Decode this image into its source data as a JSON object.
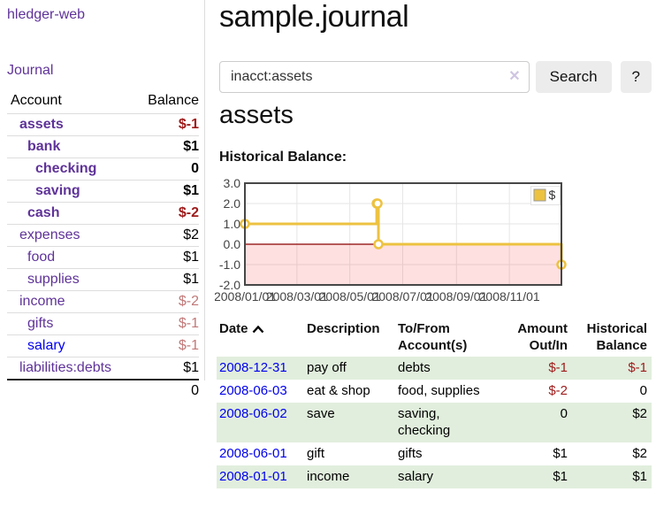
{
  "colors": {
    "purple_link": "#5f3399",
    "blue_link": "#0000ee",
    "negative_bold_red": "#9e1b1b",
    "negative_faded_red": "#c17878",
    "row_stripe_green": "#e1eedd",
    "chart_series_yellow": "#edc240",
    "chart_negative_fill": "#ff0000",
    "chart_zero_line": "#8b0000",
    "chart_grid": "#e6e6e6",
    "chart_border": "#474747",
    "button_bg": "#ececec",
    "input_border": "#cccccc",
    "clear_icon_lavender": "#cfc5e2",
    "divider": "#dddddd",
    "axis_text": "#444444"
  },
  "sidebar": {
    "app_title": "hledger-web",
    "nav": {
      "journal": "Journal"
    },
    "balance_table": {
      "headers": {
        "account": "Account",
        "balance": "Balance"
      },
      "rows": [
        {
          "account": "assets",
          "balance": "$-1",
          "depth": 0,
          "bold": true,
          "link_color": "purple_link",
          "balance_color": "negative_bold_red"
        },
        {
          "account": "bank",
          "balance": "$1",
          "depth": 1,
          "bold": true,
          "link_color": "purple_link",
          "balance_color": ""
        },
        {
          "account": "checking",
          "balance": "0",
          "depth": 2,
          "bold": true,
          "link_color": "purple_link",
          "balance_color": ""
        },
        {
          "account": "saving",
          "balance": "$1",
          "depth": 2,
          "bold": true,
          "link_color": "purple_link",
          "balance_color": ""
        },
        {
          "account": "cash",
          "balance": "$-2",
          "depth": 1,
          "bold": true,
          "link_color": "purple_link",
          "balance_color": "negative_bold_red"
        },
        {
          "account": "expenses",
          "balance": "$2",
          "depth": 0,
          "bold": false,
          "link_color": "purple_link",
          "balance_color": ""
        },
        {
          "account": "food",
          "balance": "$1",
          "depth": 1,
          "bold": false,
          "link_color": "purple_link",
          "balance_color": ""
        },
        {
          "account": "supplies",
          "balance": "$1",
          "depth": 1,
          "bold": false,
          "link_color": "purple_link",
          "balance_color": ""
        },
        {
          "account": "income",
          "balance": "$-2",
          "depth": 0,
          "bold": false,
          "link_color": "purple_link",
          "balance_color": "negative_faded_red"
        },
        {
          "account": "gifts",
          "balance": "$-1",
          "depth": 1,
          "bold": false,
          "link_color": "purple_link",
          "balance_color": "negative_faded_red"
        },
        {
          "account": "salary",
          "balance": "$-1",
          "depth": 1,
          "bold": false,
          "link_color": "blue_link",
          "balance_color": "negative_faded_red"
        },
        {
          "account": "liabilities:debts",
          "balance": "$1",
          "depth": 0,
          "bold": false,
          "link_color": "purple_link",
          "balance_color": ""
        }
      ],
      "total": "0"
    }
  },
  "main": {
    "title": "sample.journal",
    "search": {
      "value": "inacct:assets",
      "clear_icon": "✕",
      "button": "Search",
      "help_button": "?"
    },
    "account_heading": "assets",
    "section_label": "Historical Balance:",
    "register_table": {
      "headers": {
        "date": "Date",
        "sort": "ascending",
        "description": "Description",
        "accounts": "To/From Account(s)",
        "amount": "Amount Out/In",
        "balance": "Historical Balance"
      },
      "rows": [
        {
          "date": "2008-12-31",
          "description": "pay off",
          "accounts": "debts",
          "amount": "$-1",
          "balance": "$-1",
          "amount_negative": true,
          "balance_negative": true
        },
        {
          "date": "2008-06-03",
          "description": "eat & shop",
          "accounts": "food, supplies",
          "amount": "$-2",
          "balance": "0",
          "amount_negative": true,
          "balance_negative": false
        },
        {
          "date": "2008-06-02",
          "description": "save",
          "accounts": "saving, checking",
          "amount": "0",
          "balance": "$2",
          "amount_negative": false,
          "balance_negative": false
        },
        {
          "date": "2008-06-01",
          "description": "gift",
          "accounts": "gifts",
          "amount": "$1",
          "balance": "$2",
          "amount_negative": false,
          "balance_negative": false
        },
        {
          "date": "2008-01-01",
          "description": "income",
          "accounts": "salary",
          "amount": "$1",
          "balance": "$1",
          "amount_negative": false,
          "balance_negative": false
        }
      ]
    }
  },
  "chart_data": {
    "type": "line",
    "step": true,
    "title": "Historical Balance",
    "series": [
      {
        "name": "$",
        "color": "#edc240",
        "points": [
          {
            "date": "2008-01-01",
            "value": 1
          },
          {
            "date": "2008-06-01",
            "value": 2
          },
          {
            "date": "2008-06-02",
            "value": 2
          },
          {
            "date": "2008-06-03",
            "value": 0
          },
          {
            "date": "2008-12-31",
            "value": -1
          }
        ]
      }
    ],
    "xlim": [
      "2008-01-01",
      "2008-12-31"
    ],
    "ylim": [
      -2,
      3
    ],
    "yticks": [
      "3.0",
      "2.0",
      "1.0",
      "0.0",
      "-1.0",
      "-2.0"
    ],
    "xticks": [
      "2008/01/01",
      "2008/03/01",
      "2008/05/01",
      "2008/07/01",
      "2008/09/01",
      "2008/11/01"
    ],
    "grid": true,
    "legend_position": "top-right",
    "negative_region": "shaded-red",
    "zero_line": true
  }
}
